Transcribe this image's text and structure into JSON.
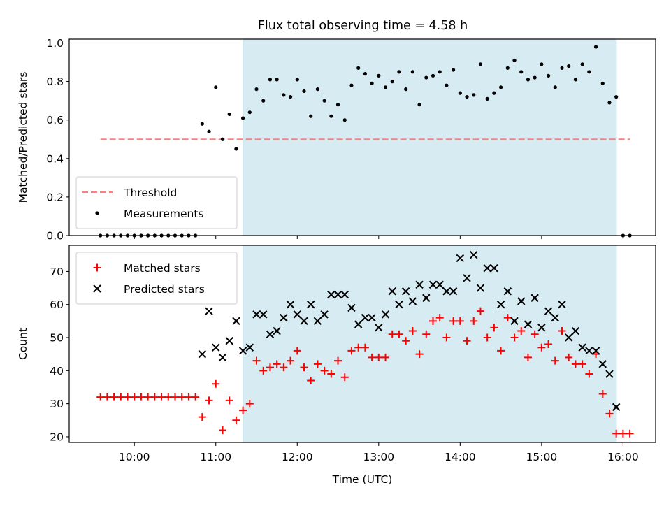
{
  "title": "Flux total observing time = 4.58 h",
  "colors": {
    "threshold": "#ff7f7f",
    "measurements": "#000000",
    "matched": "#ff0000",
    "predicted": "#000000",
    "observing_window": "#add8e6"
  },
  "chart_data": [
    {
      "type": "scatter",
      "panel": "top",
      "ylabel": "Matched/Predicted stars",
      "xlim": [
        "09:12",
        "16:24"
      ],
      "ylim": [
        0,
        1.02
      ],
      "y_ticks": [
        "0.0",
        "0.2",
        "0.4",
        "0.6",
        "0.8",
        "1.0"
      ],
      "x_ticks": [
        "10:00",
        "11:00",
        "12:00",
        "13:00",
        "14:00",
        "15:00",
        "16:00"
      ],
      "show_x_tick_labels": false,
      "observing_window": [
        "11:20",
        "15:55"
      ],
      "legend": {
        "location": "lower-left",
        "entries": [
          "Threshold",
          "Measurements"
        ]
      },
      "series": [
        {
          "name": "Threshold",
          "style": "dashed-line",
          "x": [
            "09:35",
            "16:05"
          ],
          "y": [
            0.5,
            0.5
          ]
        },
        {
          "name": "Measurements",
          "style": "dot",
          "x": [
            "09:35",
            "09:40",
            "09:45",
            "09:50",
            "09:55",
            "10:00",
            "10:05",
            "10:10",
            "10:15",
            "10:20",
            "10:25",
            "10:30",
            "10:35",
            "10:40",
            "10:45",
            "10:50",
            "10:55",
            "11:00",
            "11:05",
            "11:10",
            "11:15",
            "11:20",
            "11:25",
            "11:30",
            "11:35",
            "11:40",
            "11:45",
            "11:50",
            "11:55",
            "12:00",
            "12:05",
            "12:10",
            "12:15",
            "12:20",
            "12:25",
            "12:30",
            "12:35",
            "12:40",
            "12:45",
            "12:50",
            "12:55",
            "13:00",
            "13:05",
            "13:10",
            "13:15",
            "13:20",
            "13:25",
            "13:30",
            "13:35",
            "13:40",
            "13:45",
            "13:50",
            "13:55",
            "14:00",
            "14:05",
            "14:10",
            "14:15",
            "14:20",
            "14:25",
            "14:30",
            "14:35",
            "14:40",
            "14:45",
            "14:50",
            "14:55",
            "15:00",
            "15:05",
            "15:10",
            "15:15",
            "15:20",
            "15:25",
            "15:30",
            "15:35",
            "15:40",
            "15:45",
            "15:50",
            "15:55",
            "16:00",
            "16:05"
          ],
          "y": [
            0,
            0,
            0,
            0,
            0,
            0,
            0,
            0,
            0,
            0,
            0,
            0,
            0,
            0,
            0,
            0.58,
            0.54,
            0.77,
            0.5,
            0.63,
            0.45,
            0.61,
            0.64,
            0.76,
            0.7,
            0.81,
            0.81,
            0.73,
            0.72,
            0.81,
            0.75,
            0.62,
            0.76,
            0.7,
            0.62,
            0.68,
            0.6,
            0.78,
            0.87,
            0.84,
            0.79,
            0.83,
            0.77,
            0.8,
            0.85,
            0.76,
            0.85,
            0.68,
            0.82,
            0.83,
            0.85,
            0.78,
            0.86,
            0.74,
            0.72,
            0.73,
            0.89,
            0.71,
            0.74,
            0.77,
            0.87,
            0.91,
            0.85,
            0.81,
            0.82,
            0.89,
            0.83,
            0.77,
            0.87,
            0.88,
            0.81,
            0.89,
            0.85,
            0.98,
            0.79,
            0.69,
            0.72,
            0,
            0
          ]
        }
      ]
    },
    {
      "type": "scatter",
      "panel": "bottom",
      "xlabel": "Time (UTC)",
      "ylabel": "Count",
      "xlim": [
        "09:12",
        "16:24"
      ],
      "ylim": [
        18.3,
        77.9
      ],
      "y_ticks": [
        "20",
        "30",
        "40",
        "50",
        "60",
        "70"
      ],
      "x_ticks": [
        "10:00",
        "11:00",
        "12:00",
        "13:00",
        "14:00",
        "15:00",
        "16:00"
      ],
      "observing_window": [
        "11:20",
        "15:55"
      ],
      "legend": {
        "location": "upper-left",
        "entries": [
          "Matched stars",
          "Predicted stars"
        ]
      },
      "series": [
        {
          "name": "Matched stars",
          "marker": "plus",
          "x": [
            "09:35",
            "09:40",
            "09:45",
            "09:50",
            "09:55",
            "10:00",
            "10:05",
            "10:10",
            "10:15",
            "10:20",
            "10:25",
            "10:30",
            "10:35",
            "10:40",
            "10:45",
            "10:50",
            "10:55",
            "11:00",
            "11:05",
            "11:10",
            "11:15",
            "11:20",
            "11:25",
            "11:30",
            "11:35",
            "11:40",
            "11:45",
            "11:50",
            "11:55",
            "12:00",
            "12:05",
            "12:10",
            "12:15",
            "12:20",
            "12:25",
            "12:30",
            "12:35",
            "12:40",
            "12:45",
            "12:50",
            "12:55",
            "13:00",
            "13:05",
            "13:10",
            "13:15",
            "13:20",
            "13:25",
            "13:30",
            "13:35",
            "13:40",
            "13:45",
            "13:50",
            "13:55",
            "14:00",
            "14:05",
            "14:10",
            "14:15",
            "14:20",
            "14:25",
            "14:30",
            "14:35",
            "14:40",
            "14:45",
            "14:50",
            "14:55",
            "15:00",
            "15:05",
            "15:10",
            "15:15",
            "15:20",
            "15:25",
            "15:30",
            "15:35",
            "15:40",
            "15:45",
            "15:50",
            "15:55",
            "16:00",
            "16:05"
          ],
          "y": [
            32,
            32,
            32,
            32,
            32,
            32,
            32,
            32,
            32,
            32,
            32,
            32,
            32,
            32,
            32,
            26,
            31,
            36,
            22,
            31,
            25,
            28,
            30,
            43,
            40,
            41,
            42,
            41,
            43,
            46,
            41,
            37,
            42,
            40,
            39,
            43,
            38,
            46,
            47,
            47,
            44,
            44,
            44,
            51,
            51,
            49,
            52,
            45,
            51,
            55,
            56,
            50,
            55,
            55,
            49,
            55,
            58,
            50,
            53,
            46,
            56,
            50,
            52,
            44,
            51,
            47,
            48,
            43,
            52,
            44,
            42,
            42,
            39,
            45,
            33,
            27,
            21,
            21,
            21
          ]
        },
        {
          "name": "Predicted stars",
          "marker": "x",
          "x": [
            "10:50",
            "10:55",
            "11:00",
            "11:05",
            "11:10",
            "11:15",
            "11:20",
            "11:25",
            "11:30",
            "11:35",
            "11:40",
            "11:45",
            "11:50",
            "11:55",
            "12:00",
            "12:05",
            "12:10",
            "12:15",
            "12:20",
            "12:25",
            "12:30",
            "12:35",
            "12:40",
            "12:45",
            "12:50",
            "12:55",
            "13:00",
            "13:05",
            "13:10",
            "13:15",
            "13:20",
            "13:25",
            "13:30",
            "13:35",
            "13:40",
            "13:45",
            "13:50",
            "13:55",
            "14:00",
            "14:05",
            "14:10",
            "14:15",
            "14:20",
            "14:25",
            "14:30",
            "14:35",
            "14:40",
            "14:45",
            "14:50",
            "14:55",
            "15:00",
            "15:05",
            "15:10",
            "15:15",
            "15:20",
            "15:25",
            "15:30",
            "15:35",
            "15:40",
            "15:45",
            "15:50",
            "15:55"
          ],
          "y": [
            45,
            58,
            47,
            44,
            49,
            55,
            46,
            47,
            57,
            57,
            51,
            52,
            56,
            60,
            57,
            55,
            60,
            55,
            57,
            63,
            63,
            63,
            59,
            54,
            56,
            56,
            53,
            57,
            64,
            60,
            64,
            61,
            66,
            62,
            66,
            66,
            64,
            64,
            74,
            68,
            75,
            65,
            71,
            71,
            60,
            64,
            55,
            61,
            54,
            62,
            53,
            58,
            56,
            60,
            50,
            52,
            47,
            46,
            46,
            42,
            39,
            29
          ]
        }
      ]
    }
  ]
}
